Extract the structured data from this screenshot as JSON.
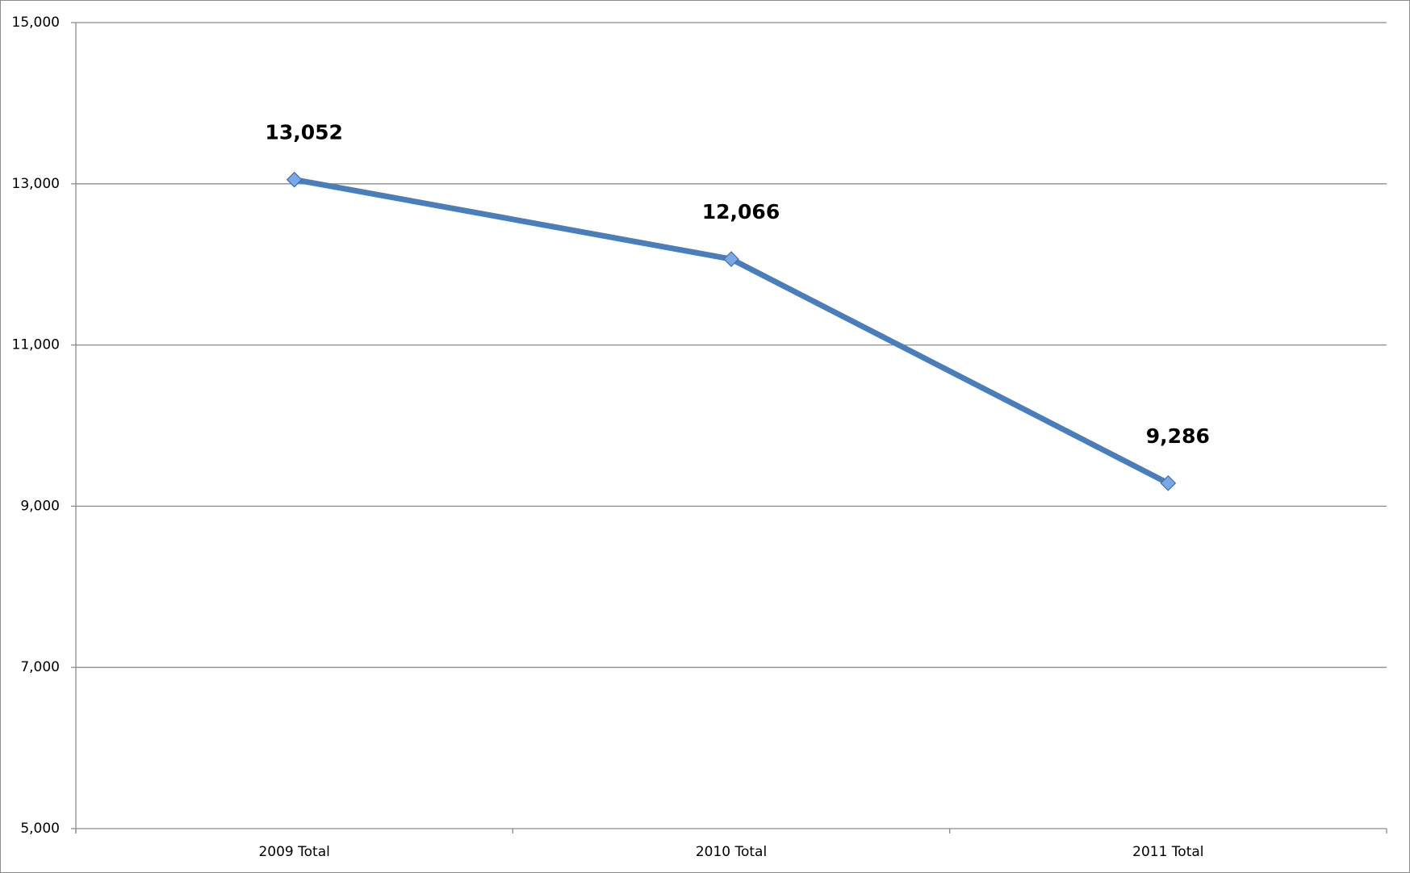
{
  "chart_data": {
    "type": "line",
    "categories": [
      "2009 Total",
      "2010 Total",
      "2011 Total"
    ],
    "series": [
      {
        "color": "#4a7ebb",
        "values": [
          13052,
          12066,
          9286
        ],
        "value_labels": [
          "13,052",
          "12,066",
          "9,286"
        ]
      }
    ],
    "ylim": [
      5000,
      15000
    ],
    "yticks": [
      {
        "value": 5000,
        "label": "5,000"
      },
      {
        "value": 7000,
        "label": "7,000"
      },
      {
        "value": 9000,
        "label": "9,000"
      },
      {
        "value": 11000,
        "label": "11,000"
      },
      {
        "value": 13000,
        "label": "13,000"
      },
      {
        "value": 15000,
        "label": "15,000"
      }
    ],
    "grid": true
  }
}
